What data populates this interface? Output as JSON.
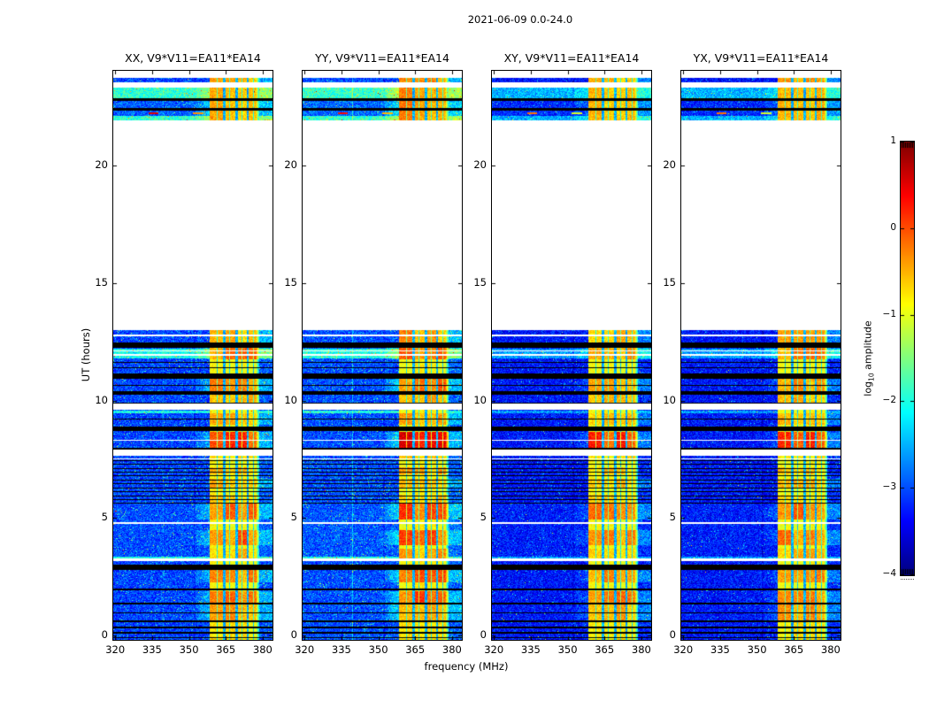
{
  "chart_data": {
    "type": "heatmap",
    "suptitle": "2021-06-09 0.0-24.0",
    "xlabel": "frequency (MHz)",
    "ylabel": "UT (hours)",
    "x_ticks": [
      320,
      335,
      350,
      365,
      380
    ],
    "x_tick_labels": [
      "320",
      "335",
      "350",
      "365",
      "380"
    ],
    "x_range_mhz": [
      319.2,
      384.0
    ],
    "y_ticks": [
      0,
      5,
      10,
      15,
      20
    ],
    "y_tick_labels": [
      "0",
      "5",
      "10",
      "15",
      "20"
    ],
    "y_range_hours": [
      -0.19,
      24.04
    ],
    "colorbar": {
      "label": "log10 amplitude",
      "label_prefix": "log",
      "label_sub": "10",
      "label_suffix": " amplitude",
      "ticks": [
        1,
        0,
        -1,
        -2,
        -3,
        -4
      ],
      "tick_labels": [
        "1",
        "0",
        "−1",
        "−2",
        "−3",
        "−4"
      ],
      "range": [
        -4,
        1
      ],
      "colormap": "jet"
    },
    "panels": [
      {
        "id": "XX",
        "title": "XX, V9*V11=EA11*EA14",
        "bg_level": -3.05,
        "speckle": 1.0,
        "band_gain": 0.88,
        "cyan_gain": 1.0,
        "glow": 0.55,
        "vline": 0.25,
        "dash": 1.0
      },
      {
        "id": "YY",
        "title": "YY, V9*V11=EA11*EA14",
        "bg_level": -3.0,
        "speckle": 1.1,
        "band_gain": 1.0,
        "cyan_gain": 1.0,
        "glow": 0.7,
        "vline": 0.6,
        "dash": 0.85
      },
      {
        "id": "XY",
        "title": "XY, V9*V11=EA11*EA14",
        "bg_level": -3.3,
        "speckle": 0.45,
        "band_gain": 0.82,
        "cyan_gain": 0.3,
        "glow": 0.3,
        "vline": 0.15,
        "dash": 0.45
      },
      {
        "id": "YX",
        "title": "YX, V9*V11=EA11*EA14",
        "bg_level": -3.3,
        "speckle": 0.45,
        "band_gain": 0.88,
        "cyan_gain": 0.3,
        "glow": 0.3,
        "vline": 0.15,
        "dash": 0.45
      }
    ],
    "time_segments": [
      [
        23.55,
        23.72,
        0
      ],
      [
        21.93,
        23.32,
        0.12
      ],
      [
        9.87,
        12.99,
        0
      ],
      [
        7.99,
        9.61,
        0
      ],
      [
        7.53,
        7.65,
        0
      ],
      [
        5.61,
        7.5,
        0
      ],
      [
        3.27,
        5.61,
        0.04
      ],
      [
        -0.19,
        3.17,
        0
      ]
    ],
    "black_lines": [
      [
        22.76,
        22.87
      ],
      [
        22.34,
        22.45
      ],
      [
        12.25,
        12.47
      ],
      [
        11.62,
        11.66
      ],
      [
        11.36,
        11.41
      ],
      [
        10.93,
        11.15
      ],
      [
        10.64,
        10.68
      ],
      [
        10.25,
        10.4
      ],
      [
        9.87,
        9.92
      ],
      [
        9.19,
        9.23
      ],
      [
        8.7,
        8.89
      ],
      [
        7.91,
        7.99
      ],
      [
        7.42,
        7.46
      ],
      [
        7.27,
        7.31
      ],
      [
        7.08,
        7.12
      ],
      [
        6.93,
        6.97
      ],
      [
        6.78,
        6.82
      ],
      [
        6.59,
        6.63
      ],
      [
        6.44,
        6.48
      ],
      [
        6.25,
        6.29
      ],
      [
        6.1,
        6.14
      ],
      [
        5.91,
        5.95
      ],
      [
        5.76,
        5.8
      ],
      [
        5.61,
        5.65
      ],
      [
        2.79,
        3.01
      ],
      [
        1.92,
        2.0
      ],
      [
        1.32,
        1.39
      ],
      [
        0.94,
        0.98
      ],
      [
        0.57,
        0.64
      ],
      [
        0.3,
        0.38
      ],
      [
        0.08,
        0.15
      ],
      [
        -0.12,
        -0.06
      ]
    ],
    "white_lines": [
      [
        12.73,
        12.8
      ],
      [
        12.1,
        12.15
      ],
      [
        11.92,
        11.97
      ],
      [
        8.29,
        8.34
      ],
      [
        4.75,
        4.83
      ]
    ],
    "cyan_rows": [
      [
        22.87,
        23.32
      ],
      [
        21.93,
        22.11
      ],
      [
        11.79,
        12.21
      ],
      [
        9.46,
        9.56
      ],
      [
        3.27,
        3.34
      ]
    ],
    "band": {
      "range": [
        358.5,
        378.6
      ],
      "notches": [
        [
          363.8,
          364.8
        ],
        [
          368.8,
          369.8
        ],
        [
          373.6,
          374.4
        ]
      ],
      "sub_lines": [
        361.5,
        366.5,
        371.5,
        376.3
      ],
      "edge_fade_start": 377.3
    },
    "band_blobs": [
      [
        23.5,
        23.75,
        0.5
      ],
      [
        21.9,
        23.35,
        0.55
      ],
      [
        12.45,
        12.99,
        0.5
      ],
      [
        11.75,
        12.25,
        0.65
      ],
      [
        10.4,
        10.95,
        0.6
      ],
      [
        9.92,
        10.25,
        0.45
      ],
      [
        8.95,
        9.45,
        0.5
      ],
      [
        7.99,
        8.65,
        0.95
      ],
      [
        7.5,
        7.7,
        0.35
      ],
      [
        6.85,
        7.15,
        0.45
      ],
      [
        6.3,
        6.65,
        0.5
      ],
      [
        5.65,
        6.0,
        0.4
      ],
      [
        4.95,
        5.6,
        0.7
      ],
      [
        3.85,
        4.5,
        0.7
      ],
      [
        3.27,
        3.7,
        0.45
      ],
      [
        2.25,
        2.79,
        0.6
      ],
      [
        1.4,
        1.9,
        0.7
      ],
      [
        0.65,
        1.3,
        0.55
      ],
      [
        -0.19,
        0.55,
        0.3
      ]
    ],
    "features": {
      "narrowband_line_mhz": 339.6,
      "dark_column_mhz": 352.3,
      "rfi_dash_row_ut": [
        22.18,
        22.28
      ],
      "rfi_dashes": [
        [
          333.5,
          337.5,
          0.55
        ],
        [
          351.5,
          356.0,
          -0.35
        ]
      ]
    }
  }
}
